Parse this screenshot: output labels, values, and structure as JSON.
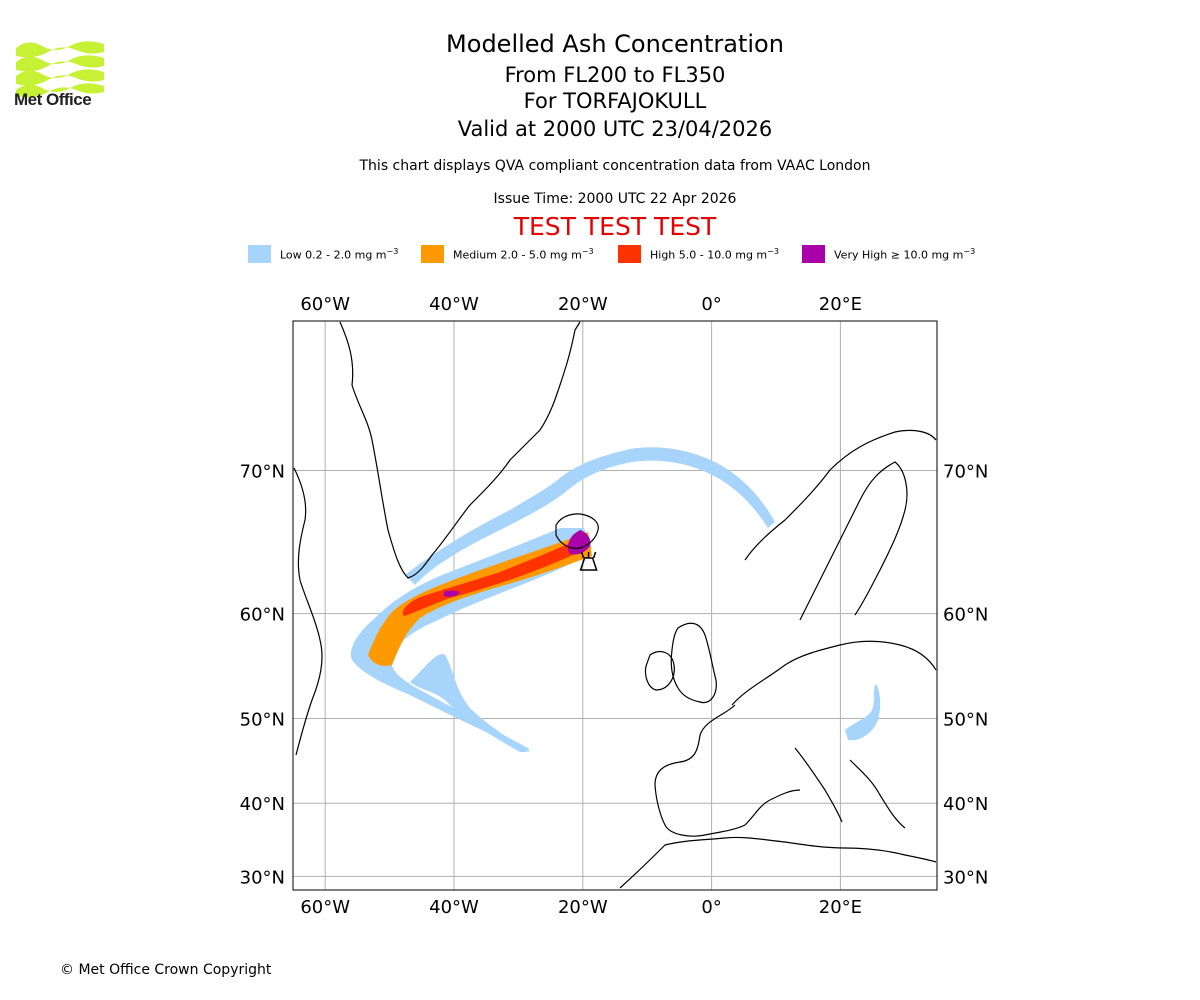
{
  "branding": {
    "logo_text": "Met Office"
  },
  "header": {
    "title": "Modelled Ash Concentration",
    "levels": "From FL200 to FL350",
    "volcano": "For TORFAJOKULL",
    "valid_time": "Valid at 2000 UTC 23/04/2026",
    "compliance_note": "This chart displays QVA compliant concentration data from VAAC London",
    "issue_time": "Issue Time: 2000 UTC 22 Apr 2026",
    "test_banner": "TEST TEST TEST"
  },
  "legend": [
    {
      "label": "Low 0.2 - 2.0 mg m",
      "unit_exp": "−3",
      "color": "#a6d4fb"
    },
    {
      "label": "Medium 2.0 - 5.0 mg m",
      "unit_exp": "−3",
      "color": "#ff9900"
    },
    {
      "label": "High 5.0 - 10.0 mg m",
      "unit_exp": "−3",
      "color": "#ff3300"
    },
    {
      "label": "Very High  ≥  10.0 mg m",
      "unit_exp": "−3",
      "color": "#aa00aa"
    }
  ],
  "map": {
    "extent": {
      "lon_min": -65,
      "lon_max": 35,
      "lat_min": 28,
      "lat_max": 77
    },
    "lon_ticks": [
      {
        "value": -60,
        "label": "60°W"
      },
      {
        "value": -40,
        "label": "40°W"
      },
      {
        "value": -20,
        "label": "20°W"
      },
      {
        "value": 0,
        "label": "0°"
      },
      {
        "value": 20,
        "label": "20°E"
      }
    ],
    "lat_ticks": [
      {
        "value": 70,
        "label": "70°N"
      },
      {
        "value": 60,
        "label": "60°N"
      },
      {
        "value": 50,
        "label": "50°N"
      },
      {
        "value": 40,
        "label": "40°N"
      },
      {
        "value": 30,
        "label": "30°N"
      }
    ],
    "volcano_marker": {
      "name": "TORFAJOKULL",
      "lon": -19.1,
      "lat": 63.9
    },
    "colors": {
      "coast": "#000000",
      "grid": "#b0b0b0",
      "frame": "#000000"
    }
  },
  "footer": {
    "copyright": "© Met Office Crown Copyright"
  }
}
